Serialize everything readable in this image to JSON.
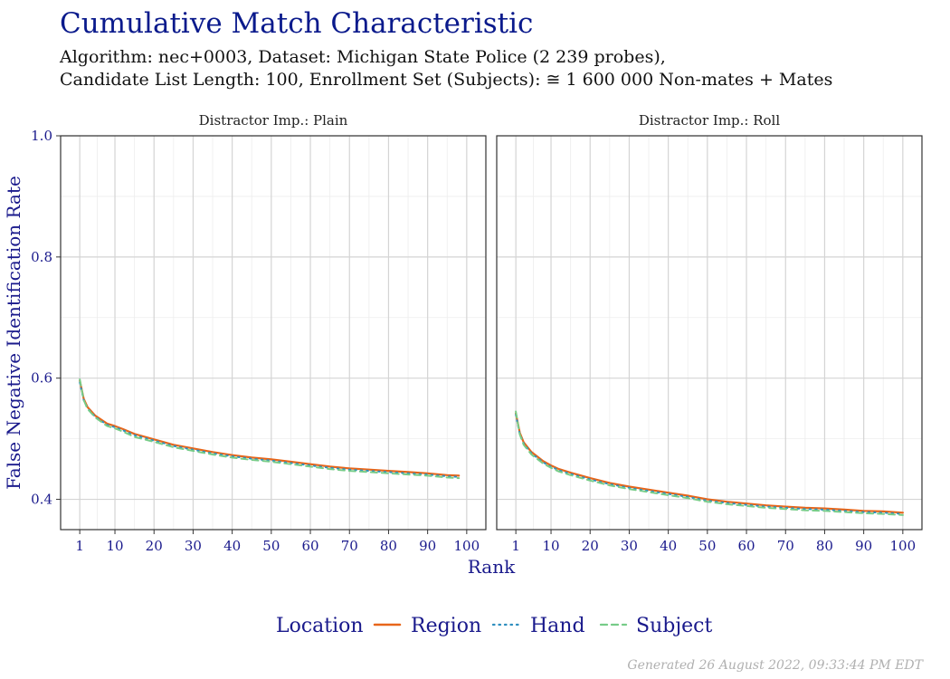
{
  "title": "Cumulative Match Characteristic",
  "subtitle_line1": "Algorithm: nec+0003, Dataset: Michigan State Police (2 239 probes),",
  "subtitle_line2": "Candidate List Length: 100, Enrollment Set (Subjects): ≅ 1 600 000 Non-mates + Mates",
  "generated": "Generated 26 August 2022, 09:33:44 PM EDT",
  "legend": {
    "title": "Location",
    "entries": [
      "Region",
      "Hand",
      "Subject"
    ]
  },
  "colors": {
    "Region": "#e8661a",
    "Hand": "#2f8fbf",
    "Subject": "#77cc88",
    "text_blue": "#1a1a8c",
    "title_blue": "#0a1a8c"
  },
  "chart_data": {
    "type": "line",
    "xlabel": "Rank",
    "ylabel": "False Negative Identification Rate",
    "xlim": [
      1,
      100
    ],
    "ylim": [
      0.35,
      1.0
    ],
    "x_ticks": [
      1,
      10,
      20,
      30,
      40,
      50,
      60,
      70,
      80,
      90,
      100
    ],
    "y_ticks": [
      0.4,
      0.6,
      0.8,
      1.0
    ],
    "y_tick_labels": [
      "0.4",
      "0.6",
      "0.8",
      "1.0"
    ],
    "grid": true,
    "legend_position": "bottom",
    "panels": [
      {
        "strip": "Distractor Imp.: Plain",
        "x": [
          1,
          2,
          3,
          5,
          8,
          10,
          12,
          15,
          20,
          25,
          30,
          35,
          40,
          45,
          50,
          55,
          60,
          65,
          70,
          75,
          80,
          85,
          90,
          95,
          98
        ],
        "series": [
          {
            "name": "Region",
            "values": [
              0.596,
              0.566,
              0.552,
              0.538,
              0.525,
              0.521,
              0.516,
              0.508,
              0.499,
              0.49,
              0.484,
              0.478,
              0.473,
              0.469,
              0.466,
              0.462,
              0.458,
              0.454,
              0.451,
              0.449,
              0.447,
              0.445,
              0.443,
              0.44,
              0.439
            ]
          },
          {
            "name": "Hand",
            "values": [
              0.593,
              0.564,
              0.55,
              0.536,
              0.523,
              0.519,
              0.514,
              0.506,
              0.497,
              0.488,
              0.482,
              0.476,
              0.471,
              0.467,
              0.464,
              0.46,
              0.456,
              0.452,
              0.449,
              0.447,
              0.445,
              0.443,
              0.441,
              0.438,
              0.437
            ]
          },
          {
            "name": "Subject",
            "values": [
              0.598,
              0.564,
              0.549,
              0.535,
              0.521,
              0.517,
              0.512,
              0.503,
              0.495,
              0.486,
              0.48,
              0.474,
              0.469,
              0.465,
              0.462,
              0.458,
              0.454,
              0.45,
              0.447,
              0.445,
              0.443,
              0.441,
              0.439,
              0.436,
              0.435
            ]
          }
        ]
      },
      {
        "strip": "Distractor Imp.: Roll",
        "x": [
          1,
          2,
          3,
          5,
          8,
          10,
          12,
          15,
          20,
          25,
          30,
          35,
          40,
          45,
          50,
          55,
          60,
          65,
          70,
          75,
          80,
          85,
          90,
          95,
          100
        ],
        "series": [
          {
            "name": "Region",
            "values": [
              0.542,
              0.51,
              0.494,
              0.478,
              0.463,
              0.456,
              0.45,
              0.444,
              0.435,
              0.427,
              0.421,
              0.416,
              0.411,
              0.406,
              0.4,
              0.396,
              0.393,
              0.39,
              0.388,
              0.386,
              0.385,
              0.383,
              0.381,
              0.38,
              0.378
            ]
          },
          {
            "name": "Hand",
            "values": [
              0.54,
              0.508,
              0.492,
              0.476,
              0.461,
              0.454,
              0.448,
              0.442,
              0.433,
              0.425,
              0.419,
              0.414,
              0.409,
              0.404,
              0.398,
              0.394,
              0.391,
              0.388,
              0.386,
              0.384,
              0.383,
              0.381,
              0.379,
              0.378,
              0.376
            ]
          },
          {
            "name": "Subject",
            "values": [
              0.545,
              0.507,
              0.49,
              0.474,
              0.459,
              0.452,
              0.446,
              0.44,
              0.431,
              0.423,
              0.417,
              0.412,
              0.407,
              0.402,
              0.396,
              0.392,
              0.389,
              0.386,
              0.384,
              0.382,
              0.381,
              0.379,
              0.377,
              0.376,
              0.374
            ]
          }
        ]
      }
    ]
  }
}
